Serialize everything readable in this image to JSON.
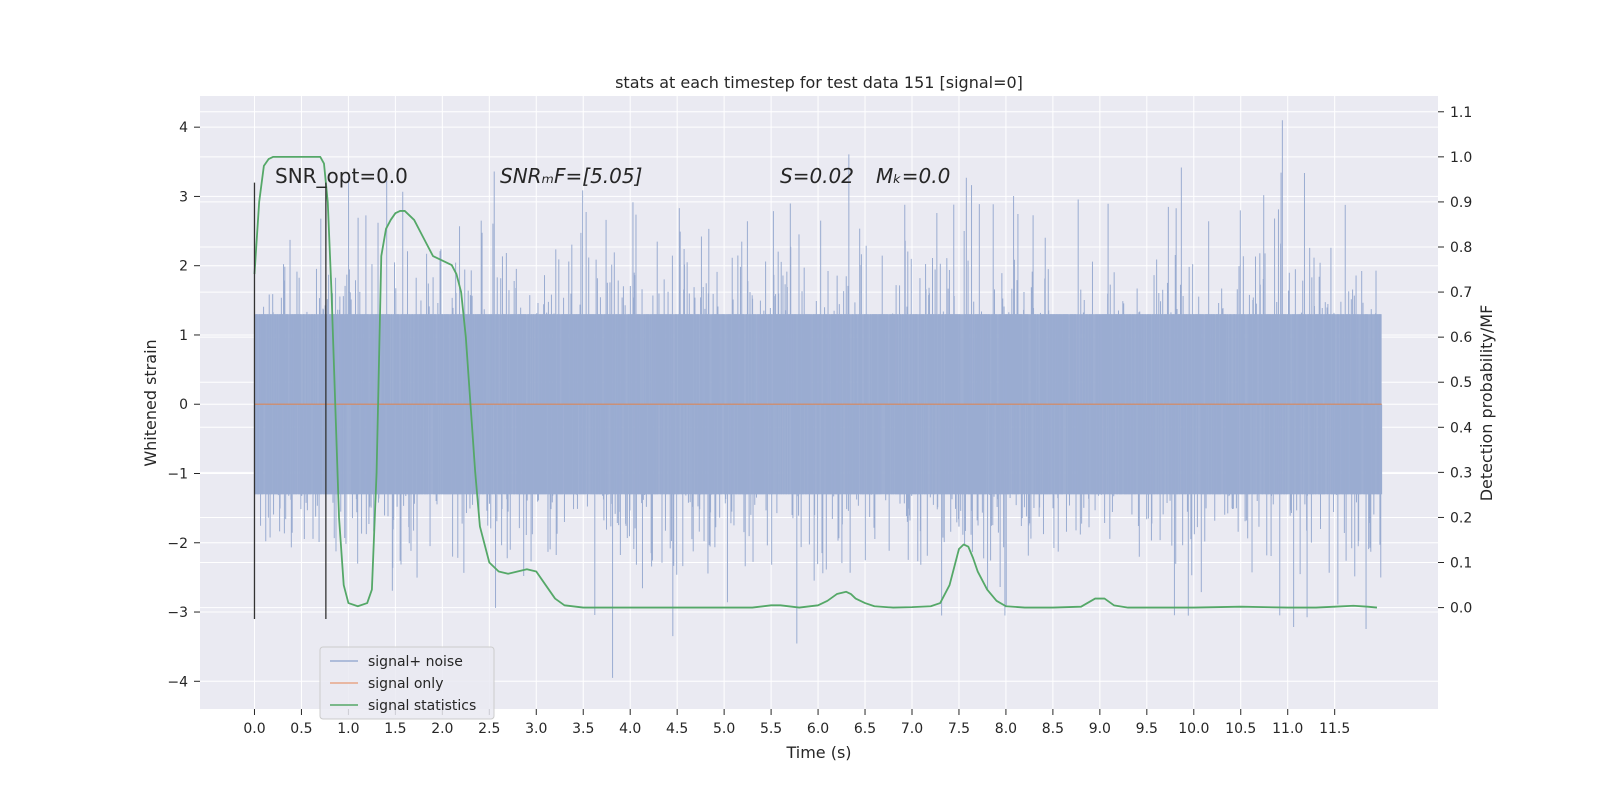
{
  "chart_data": {
    "type": "line",
    "title": "stats at each timestep for test data 151 [signal=0]",
    "xlabel": "Time (s)",
    "ylabel_left": "Whitened strain",
    "ylabel_right": "Detection probability/MF",
    "xlim": [
      -0.58,
      12.6
    ],
    "ylim_left": [
      -4.4,
      4.45
    ],
    "ylim_right": [
      -0.225,
      1.135
    ],
    "x_ticks": [
      "0.0",
      "0.5",
      "1.0",
      "1.5",
      "2.0",
      "2.5",
      "3.0",
      "3.5",
      "4.0",
      "4.5",
      "5.0",
      "5.5",
      "6.0",
      "6.5",
      "7.0",
      "7.5",
      "8.0",
      "8.5",
      "9.0",
      "9.5",
      "10.0",
      "10.5",
      "11.0",
      "11.5"
    ],
    "y_left_ticks": [
      4,
      3,
      2,
      1,
      0,
      -1,
      -2,
      -3,
      -4
    ],
    "y_left_tick_labels": [
      "4",
      "3",
      "2",
      "1",
      "0",
      "−1",
      "−2",
      "−3",
      "−4"
    ],
    "y_right_ticks": [
      "1.1",
      "1.0",
      "0.9",
      "0.8",
      "0.7",
      "0.6",
      "0.5",
      "0.4",
      "0.3",
      "0.2",
      "0.1",
      "0.0"
    ],
    "grid": true,
    "legend_position": "lower-left",
    "annotations": {
      "snr_opt": "SNR_opt=0.0",
      "snr_mf": "SNRₘF=[5.05]",
      "s": "S=0.02",
      "mc": "Mₖ=0.0"
    },
    "vertical_lines": [
      0.0,
      0.76
    ],
    "series": [
      {
        "name": "signal+ noise",
        "color": "#9aacd1",
        "description_axis": "left",
        "x_range": [
          0.0,
          12.0
        ],
        "y_range_typical": [
          -1.3,
          1.3
        ],
        "y_extremes": [
          -3.95,
          4.1
        ]
      },
      {
        "name": "signal only",
        "color": "#dd8452",
        "axis": "left",
        "x": [
          0.0,
          12.0
        ],
        "y": [
          0.0,
          0.0
        ]
      },
      {
        "name": "signal statistics",
        "color": "#55a868",
        "axis": "right",
        "x": [
          0.0,
          0.05,
          0.1,
          0.15,
          0.2,
          0.3,
          0.5,
          0.7,
          0.74,
          0.78,
          0.82,
          0.86,
          0.9,
          0.95,
          1.0,
          1.1,
          1.2,
          1.25,
          1.3,
          1.35,
          1.4,
          1.45,
          1.5,
          1.55,
          1.6,
          1.65,
          1.7,
          1.8,
          1.9,
          2.0,
          2.1,
          2.15,
          2.2,
          2.25,
          2.3,
          2.35,
          2.4,
          2.5,
          2.6,
          2.7,
          2.8,
          2.9,
          3.0,
          3.1,
          3.2,
          3.3,
          3.5,
          4.0,
          4.5,
          5.0,
          5.3,
          5.5,
          5.6,
          5.8,
          6.0,
          6.1,
          6.2,
          6.3,
          6.35,
          6.4,
          6.5,
          6.6,
          6.8,
          7.0,
          7.2,
          7.3,
          7.4,
          7.45,
          7.5,
          7.55,
          7.6,
          7.65,
          7.7,
          7.8,
          7.9,
          8.0,
          8.2,
          8.5,
          8.8,
          8.95,
          9.05,
          9.15,
          9.3,
          9.6,
          10.0,
          10.5,
          11.0,
          11.3,
          11.5,
          11.7,
          11.85,
          11.95
        ],
        "y": [
          0.74,
          0.9,
          0.98,
          0.995,
          1.0,
          1.0,
          1.0,
          1.0,
          0.985,
          0.9,
          0.7,
          0.45,
          0.2,
          0.05,
          0.01,
          0.003,
          0.01,
          0.04,
          0.3,
          0.78,
          0.84,
          0.86,
          0.875,
          0.88,
          0.88,
          0.87,
          0.86,
          0.82,
          0.78,
          0.77,
          0.76,
          0.74,
          0.7,
          0.6,
          0.45,
          0.3,
          0.18,
          0.1,
          0.08,
          0.075,
          0.08,
          0.085,
          0.08,
          0.05,
          0.02,
          0.005,
          0.0,
          0.0,
          0.0,
          0.0,
          0.0,
          0.005,
          0.005,
          0.0,
          0.005,
          0.015,
          0.03,
          0.035,
          0.03,
          0.02,
          0.01,
          0.003,
          0.0,
          0.001,
          0.003,
          0.01,
          0.05,
          0.09,
          0.13,
          0.14,
          0.135,
          0.11,
          0.08,
          0.04,
          0.015,
          0.003,
          0.0,
          0.0,
          0.002,
          0.02,
          0.02,
          0.005,
          0.0,
          0.0,
          0.0,
          0.002,
          0.0,
          0.0,
          0.002,
          0.004,
          0.002,
          0.0
        ]
      }
    ]
  }
}
